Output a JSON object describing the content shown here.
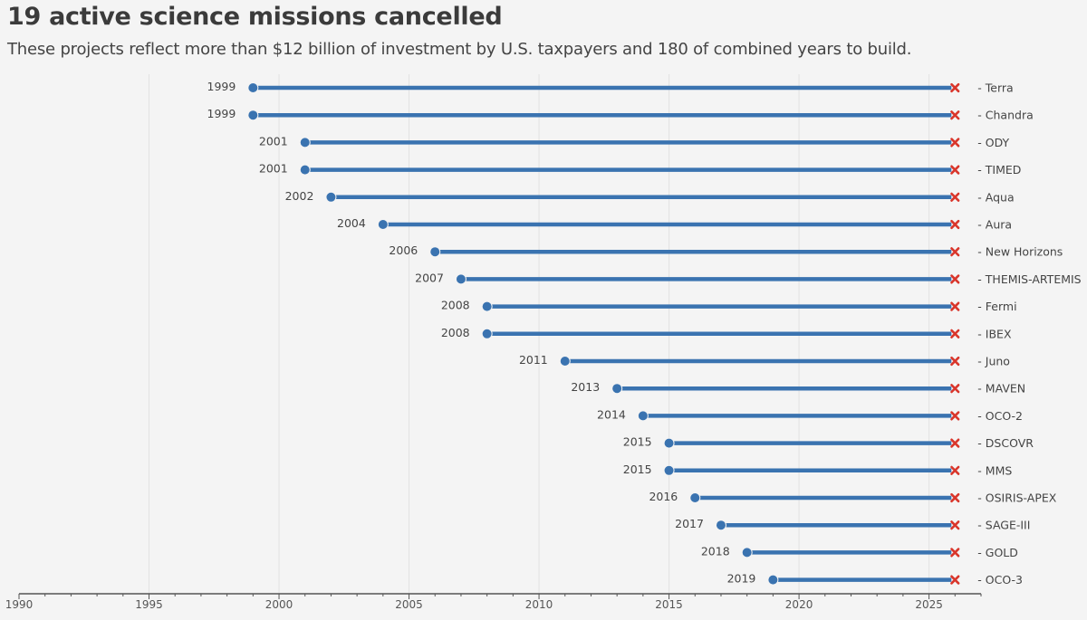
{
  "chart_data": {
    "type": "dumbbell",
    "title": "19 active science missions cancelled",
    "subtitle": "These projects reflect more than $12 billion of investment by U.S. taxpayers and 180 of combined years to build.",
    "xlim": [
      1990,
      2027
    ],
    "end_year": 2026,
    "x_ticks": [
      "1990",
      "1995",
      "2000",
      "2005",
      "2010",
      "2015",
      "2020",
      "2025"
    ],
    "x_tick_values": [
      1990,
      1995,
      2000,
      2005,
      2010,
      2015,
      2020,
      2025
    ],
    "label_prefix": "- ",
    "missions": [
      {
        "name": "Terra",
        "start": 1999,
        "start_label": "1999"
      },
      {
        "name": "Chandra",
        "start": 1999,
        "start_label": "1999"
      },
      {
        "name": "ODY",
        "start": 2001,
        "start_label": "2001"
      },
      {
        "name": "TIMED",
        "start": 2001,
        "start_label": "2001"
      },
      {
        "name": "Aqua",
        "start": 2002,
        "start_label": "2002"
      },
      {
        "name": "Aura",
        "start": 2004,
        "start_label": "2004"
      },
      {
        "name": "New Horizons",
        "start": 2006,
        "start_label": "2006"
      },
      {
        "name": "THEMIS-ARTEMIS",
        "start": 2007,
        "start_label": "2007"
      },
      {
        "name": "Fermi",
        "start": 2008,
        "start_label": "2008"
      },
      {
        "name": "IBEX",
        "start": 2008,
        "start_label": "2008"
      },
      {
        "name": "Juno",
        "start": 2011,
        "start_label": "2011"
      },
      {
        "name": "MAVEN",
        "start": 2013,
        "start_label": "2013"
      },
      {
        "name": "OCO-2",
        "start": 2014,
        "start_label": "2014"
      },
      {
        "name": "DSCOVR",
        "start": 2015,
        "start_label": "2015"
      },
      {
        "name": "MMS",
        "start": 2015,
        "start_label": "2015"
      },
      {
        "name": "OSIRIS-APEX",
        "start": 2016,
        "start_label": "2016"
      },
      {
        "name": "SAGE-III",
        "start": 2017,
        "start_label": "2017"
      },
      {
        "name": "GOLD",
        "start": 2018,
        "start_label": "2018"
      },
      {
        "name": "OCO-3",
        "start": 2019,
        "start_label": "2019"
      }
    ],
    "colors": {
      "line": "#3a73b0",
      "dot": "#3a73b0",
      "cancel": "#d9362b",
      "grid": "#e2e2e2",
      "axis": "#555555"
    }
  }
}
